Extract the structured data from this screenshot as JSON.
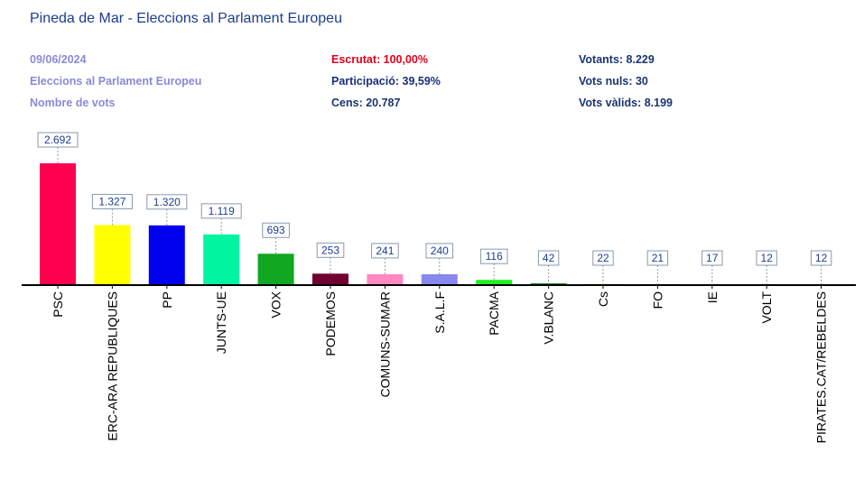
{
  "header": {
    "title": "Pineda de Mar - Eleccions al Parlament Europeu",
    "date": "09/06/2024",
    "election": "Eleccions al Parlament Europeu",
    "metric": "Nombre de vots",
    "escrutat": "Escrutat: 100,00%",
    "participacio": "Participació: 39,59%",
    "cens": "Cens: 20.787",
    "votants": "Votants: 8.229",
    "vots_nuls": "Vots nuls: 30",
    "vots_valids": "Vots vàlids: 8.199"
  },
  "colors": {
    "title": "#1a3d8f",
    "muted": "#8a8ad6",
    "escrutat": "#e0001b"
  },
  "chart_data": {
    "type": "bar",
    "categories": [
      "PSC",
      "ERC-ARA REPUBLIQUES",
      "PP",
      "JUNTS-UE",
      "VOX",
      "PODEMOS",
      "COMUNS-SUMAR",
      "S.A.L.F",
      "PACMA",
      "V.BLANC",
      "Cs",
      "FO",
      "IE",
      "VOLT",
      "PIRATES.CAT/REBELDES"
    ],
    "values": [
      2692,
      1327,
      1320,
      1119,
      693,
      253,
      241,
      240,
      116,
      42,
      22,
      21,
      17,
      12,
      12
    ],
    "value_labels": [
      "2.692",
      "1.327",
      "1.320",
      "1.119",
      "693",
      "253",
      "241",
      "240",
      "116",
      "42",
      "22",
      "21",
      "17",
      "12",
      "12"
    ],
    "colors": [
      "#ff0050",
      "#ffff00",
      "#0000ee",
      "#00f5a0",
      "#10a820",
      "#700030",
      "#ff88c0",
      "#8888ee",
      "#22ee22",
      "#2a8a3a",
      "#ff7700",
      "#a0a0a0",
      "#6699cc",
      "#5a2a8a",
      "#222222"
    ],
    "ylim": [
      0,
      2692
    ],
    "grid": false,
    "legend": "none"
  }
}
